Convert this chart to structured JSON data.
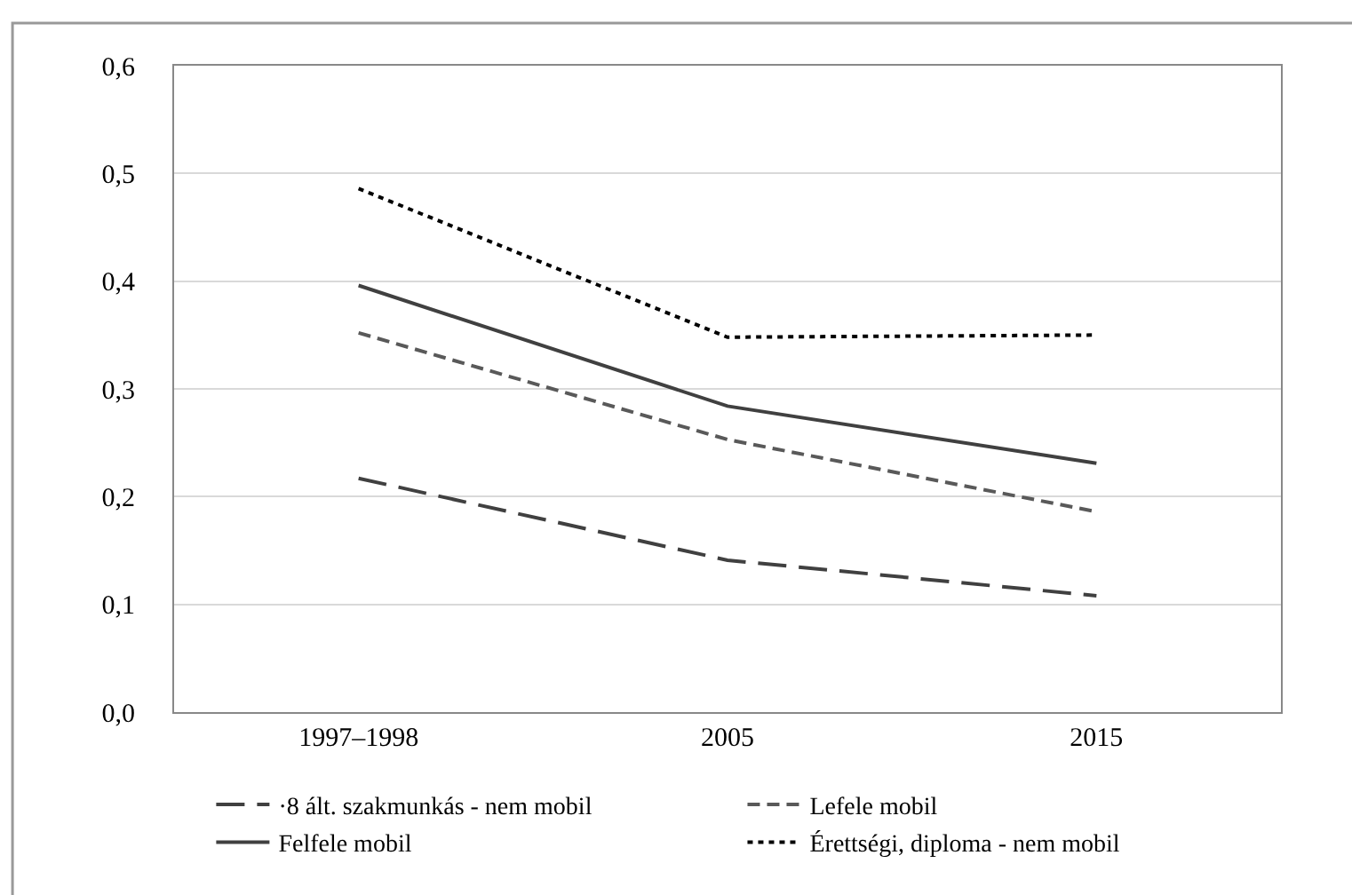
{
  "chart_data": {
    "type": "line",
    "categories": [
      "1997–1998",
      "2005",
      "2015"
    ],
    "series": [
      {
        "name": "·8 ált. szakmunkás - nem mobil",
        "color": "#404040",
        "line_style": "longdash",
        "values": [
          0.217,
          0.141,
          0.108
        ]
      },
      {
        "name": "Lefele mobil",
        "color": "#595959",
        "line_style": "dashed",
        "values": [
          0.352,
          0.253,
          0.186
        ]
      },
      {
        "name": "Felfele mobil",
        "color": "#404040",
        "line_style": "solid",
        "values": [
          0.396,
          0.284,
          0.231
        ]
      },
      {
        "name": "Érettségi, diploma - nem mobil",
        "color": "#000000",
        "line_style": "dotted",
        "values": [
          0.486,
          0.348,
          0.35
        ]
      }
    ],
    "ylim": [
      0,
      0.6
    ],
    "yticks": [
      {
        "value": 0,
        "label": "0,0"
      },
      {
        "value": 0.1,
        "label": "0,1"
      },
      {
        "value": 0.2,
        "label": "0,2"
      },
      {
        "value": 0.3,
        "label": "0,3"
      },
      {
        "value": 0.4,
        "label": "0,4"
      },
      {
        "value": 0.5,
        "label": "0,5"
      },
      {
        "value": 0.6,
        "label": "0,6"
      }
    ],
    "grid": "y",
    "legend": "bottom",
    "marker": "none"
  }
}
